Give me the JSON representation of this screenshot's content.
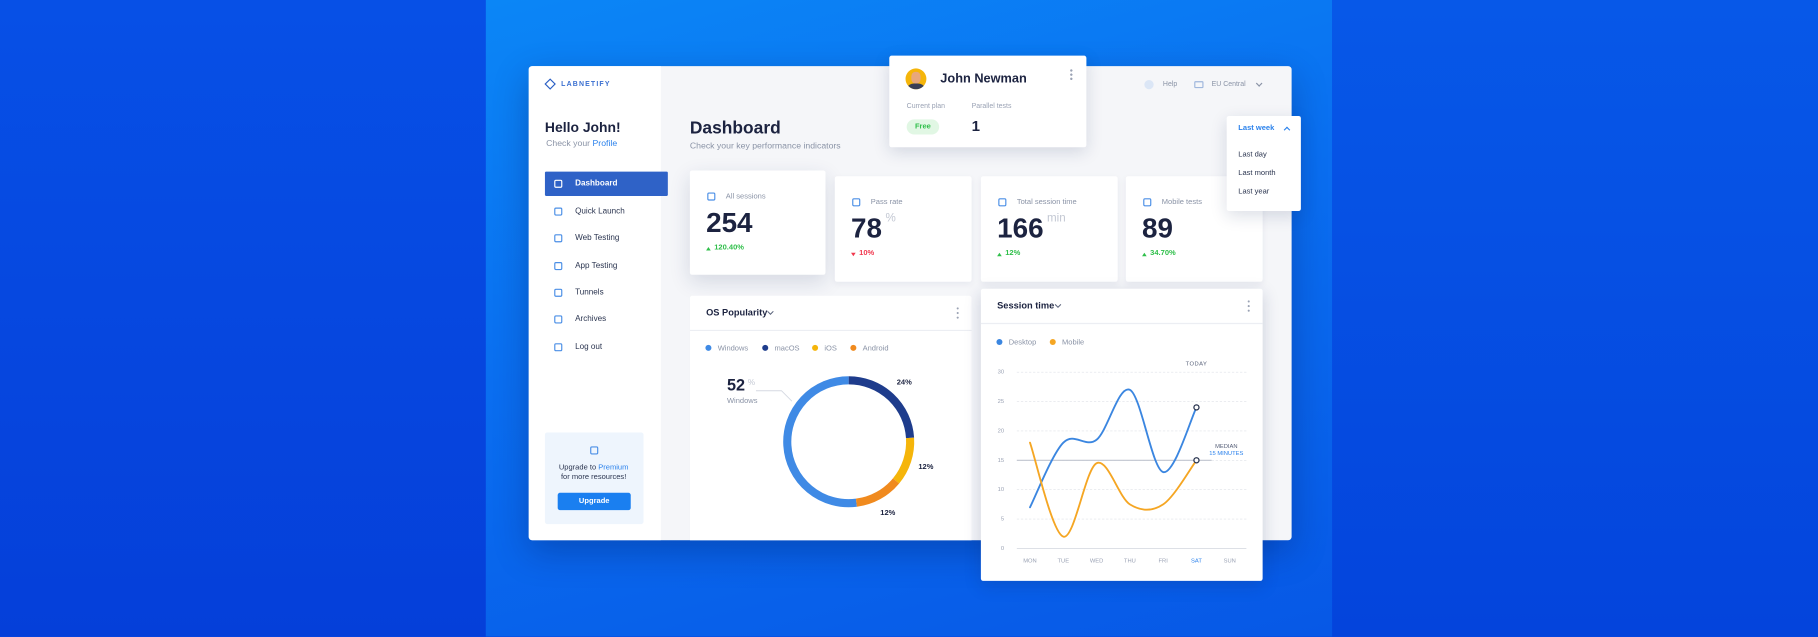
{
  "brand": "LABNETIFY",
  "sidebar": {
    "greeting": "Hello John!",
    "profile_prompt": "Check your",
    "profile_link": "Profile",
    "nav": [
      "Dashboard",
      "Quick Launch",
      "Web Testing",
      "App Testing",
      "Tunnels",
      "Archives",
      "Log out"
    ],
    "upgrade": {
      "text_before": "Upgrade to",
      "highlight": "Premium",
      "text_after": "for more resources!",
      "button": "Upgrade"
    }
  },
  "header": {
    "title": "Dashboard",
    "subtitle": "Check your key performance indicators",
    "help": "Help",
    "region": "EU Central"
  },
  "user": {
    "name": "John Newman",
    "plan_label": "Current plan",
    "plan": "Free",
    "tests_label": "Parallel tests",
    "tests": 1
  },
  "period": {
    "selected": "Last week",
    "options": [
      "Last day",
      "Last month",
      "Last year"
    ]
  },
  "stats": [
    {
      "label": "All sessions",
      "value": 254,
      "change": "120.40%",
      "trend": "up"
    },
    {
      "label": "Pass rate",
      "value": 78,
      "unit": "%",
      "change": "10%",
      "trend": "down"
    },
    {
      "label": "Total session time",
      "value": 166,
      "unit": "min",
      "change": "12%",
      "trend": "up"
    },
    {
      "label": "Mobile tests",
      "value": 89,
      "change": "34.70%",
      "trend": "up"
    }
  ],
  "chart_data": [
    {
      "type": "donut",
      "title": "OS Popularity",
      "categories": [
        "Windows",
        "macOS",
        "iOS",
        "Android"
      ],
      "colors": [
        "#3f8ae5",
        "#1e3c8c",
        "#f5b50a",
        "#f08a1e"
      ],
      "values": [
        52,
        24,
        12,
        12
      ],
      "value_labels": [
        null,
        "24%",
        "12%",
        "12%"
      ],
      "unit": "%"
    },
    {
      "type": "line",
      "title": "Session time",
      "categories": [
        "MON",
        "TUE",
        "WED",
        "THU",
        "FRI",
        "SAT",
        "SUN"
      ],
      "series": [
        {
          "name": "Desktop",
          "color": "#3b86e0",
          "values": [
            7,
            18,
            18.5,
            27,
            13,
            24,
            null
          ]
        },
        {
          "name": "Mobile",
          "color": "#f5a623",
          "values": [
            18,
            2,
            14.5,
            7.5,
            7.5,
            15,
            null
          ]
        }
      ],
      "ylim": [
        0,
        30
      ],
      "yticks": [
        0,
        5,
        10,
        15,
        20,
        25,
        30
      ],
      "grid": true,
      "annotation": "TODAY",
      "median": {
        "label": "MEDIAN",
        "value_label": "15 MINUTES",
        "value": 15
      }
    }
  ]
}
